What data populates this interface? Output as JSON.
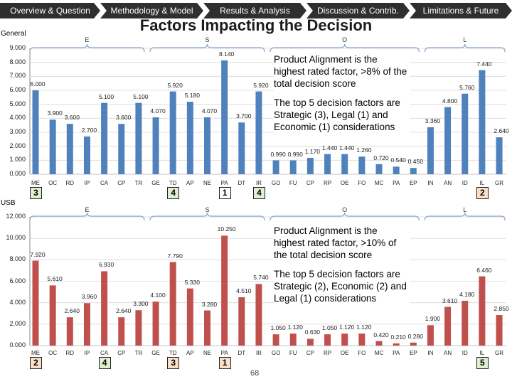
{
  "nav": {
    "tabs": [
      {
        "label": "Overview & Question"
      },
      {
        "label": "Methodology & Model"
      },
      {
        "label": "Results & Analysis"
      },
      {
        "label": "Discussion & Contrib."
      },
      {
        "label": "Limitations & Future"
      }
    ]
  },
  "title": "Factors Impacting the Decision",
  "page_number": "68",
  "colors": {
    "nav_bg": "#2f2f2f",
    "blue_bar": "#4f81bd",
    "red_bar": "#c0504d",
    "brace": "#8aa6c9"
  },
  "chart_data": [
    {
      "type": "bar",
      "panel_label": "General",
      "color": "#4f81bd",
      "ylim": [
        0,
        9
      ],
      "yticks": [
        "0.000",
        "1.000",
        "2.000",
        "3.000",
        "4.000",
        "5.000",
        "6.000",
        "7.000",
        "8.000",
        "9.000"
      ],
      "group_letters": [
        "E",
        "S",
        "O",
        "L"
      ],
      "categories": [
        "ME",
        "OC",
        "RD",
        "IP",
        "CA",
        "CP",
        "TR",
        "GE",
        "TD",
        "AP",
        "NE",
        "PA",
        "DT",
        "IR",
        "GO",
        "FU",
        "CP",
        "RP",
        "OE",
        "FO",
        "MC",
        "PA",
        "EP",
        "IN",
        "AN",
        "ID",
        "IL",
        "GR"
      ],
      "values": [
        6.0,
        3.9,
        3.6,
        2.7,
        5.1,
        3.6,
        5.1,
        4.07,
        5.92,
        5.18,
        4.07,
        8.14,
        3.7,
        5.92,
        0.99,
        0.99,
        1.17,
        1.44,
        1.44,
        1.26,
        0.72,
        0.54,
        0.45,
        3.36,
        4.8,
        5.76,
        7.44,
        2.64
      ],
      "value_labels": [
        "6.000",
        "3.900",
        "3.600",
        "2.700",
        "5.100",
        "3.600",
        "5.100",
        "4.070",
        "5.920",
        "5.180",
        "4.070",
        "8.140",
        "3.700",
        "5.920",
        "0.990",
        "0.990",
        "1.170",
        "1.440",
        "1.440",
        "1.260",
        "0.720",
        "0.540",
        "0.450",
        "3.360",
        "4.800",
        "5.760",
        "7.440",
        "2.640"
      ],
      "badges": [
        {
          "text": "3",
          "style": "green"
        },
        {
          "text": "4",
          "style": "green"
        },
        {
          "text": "1",
          "style": "plain"
        },
        {
          "text": "4",
          "style": "green"
        },
        {
          "text": "2",
          "style": "orange"
        }
      ],
      "callout": [
        "Product Alignment is the highest rated factor, >8% of the total decision score",
        "The top 5 decision factors are Strategic (3), Legal (1) and Economic (1) considerations"
      ]
    },
    {
      "type": "bar",
      "panel_label": "USB",
      "color": "#c0504d",
      "ylim": [
        0,
        12
      ],
      "yticks": [
        "0.000",
        "2.000",
        "4.000",
        "6.000",
        "8.000",
        "10.000",
        "12.000"
      ],
      "group_letters": [
        "E",
        "S",
        "O",
        "L"
      ],
      "categories": [
        "ME",
        "OC",
        "RD",
        "IP",
        "CA",
        "CP",
        "TR",
        "GE",
        "TD",
        "AP",
        "NE",
        "PA",
        "DT",
        "IR",
        "GO",
        "FU",
        "CP",
        "RP",
        "OE",
        "FO",
        "MC",
        "PA",
        "EP",
        "IN",
        "AN",
        "ID",
        "IL",
        "GR"
      ],
      "values": [
        7.92,
        5.61,
        2.64,
        3.96,
        6.93,
        2.64,
        3.3,
        4.1,
        7.79,
        5.33,
        3.28,
        10.25,
        4.51,
        5.74,
        1.05,
        1.12,
        0.63,
        1.05,
        1.12,
        1.12,
        0.42,
        0.21,
        0.28,
        1.9,
        3.61,
        4.18,
        6.46,
        2.85
      ],
      "value_labels": [
        "7.920",
        "5.610",
        "2.640",
        "3.960",
        "6.930",
        "2.640",
        "3.300",
        "4.100",
        "7.790",
        "5.330",
        "3.280",
        "10.250",
        "4.510",
        "5.740",
        "1.050",
        "1.120",
        "0.630",
        "1.050",
        "1.120",
        "1.120",
        "0.420",
        "0.210",
        "0.280",
        "1.900",
        "3.610",
        "4.180",
        "6.460",
        "2.850"
      ],
      "badges": [
        {
          "text": "2",
          "style": "orange"
        },
        {
          "text": "4",
          "style": "green"
        },
        {
          "text": "3",
          "style": "orange"
        },
        {
          "text": "1",
          "style": "orange"
        },
        {
          "text": "5",
          "style": "green"
        }
      ],
      "callout": [
        "Product Alignment is the highest rated factor, >10% of the total decision score",
        "The top 5 decision factors are Strategic (2), Economic (2) and Legal (1) considerations"
      ]
    }
  ]
}
